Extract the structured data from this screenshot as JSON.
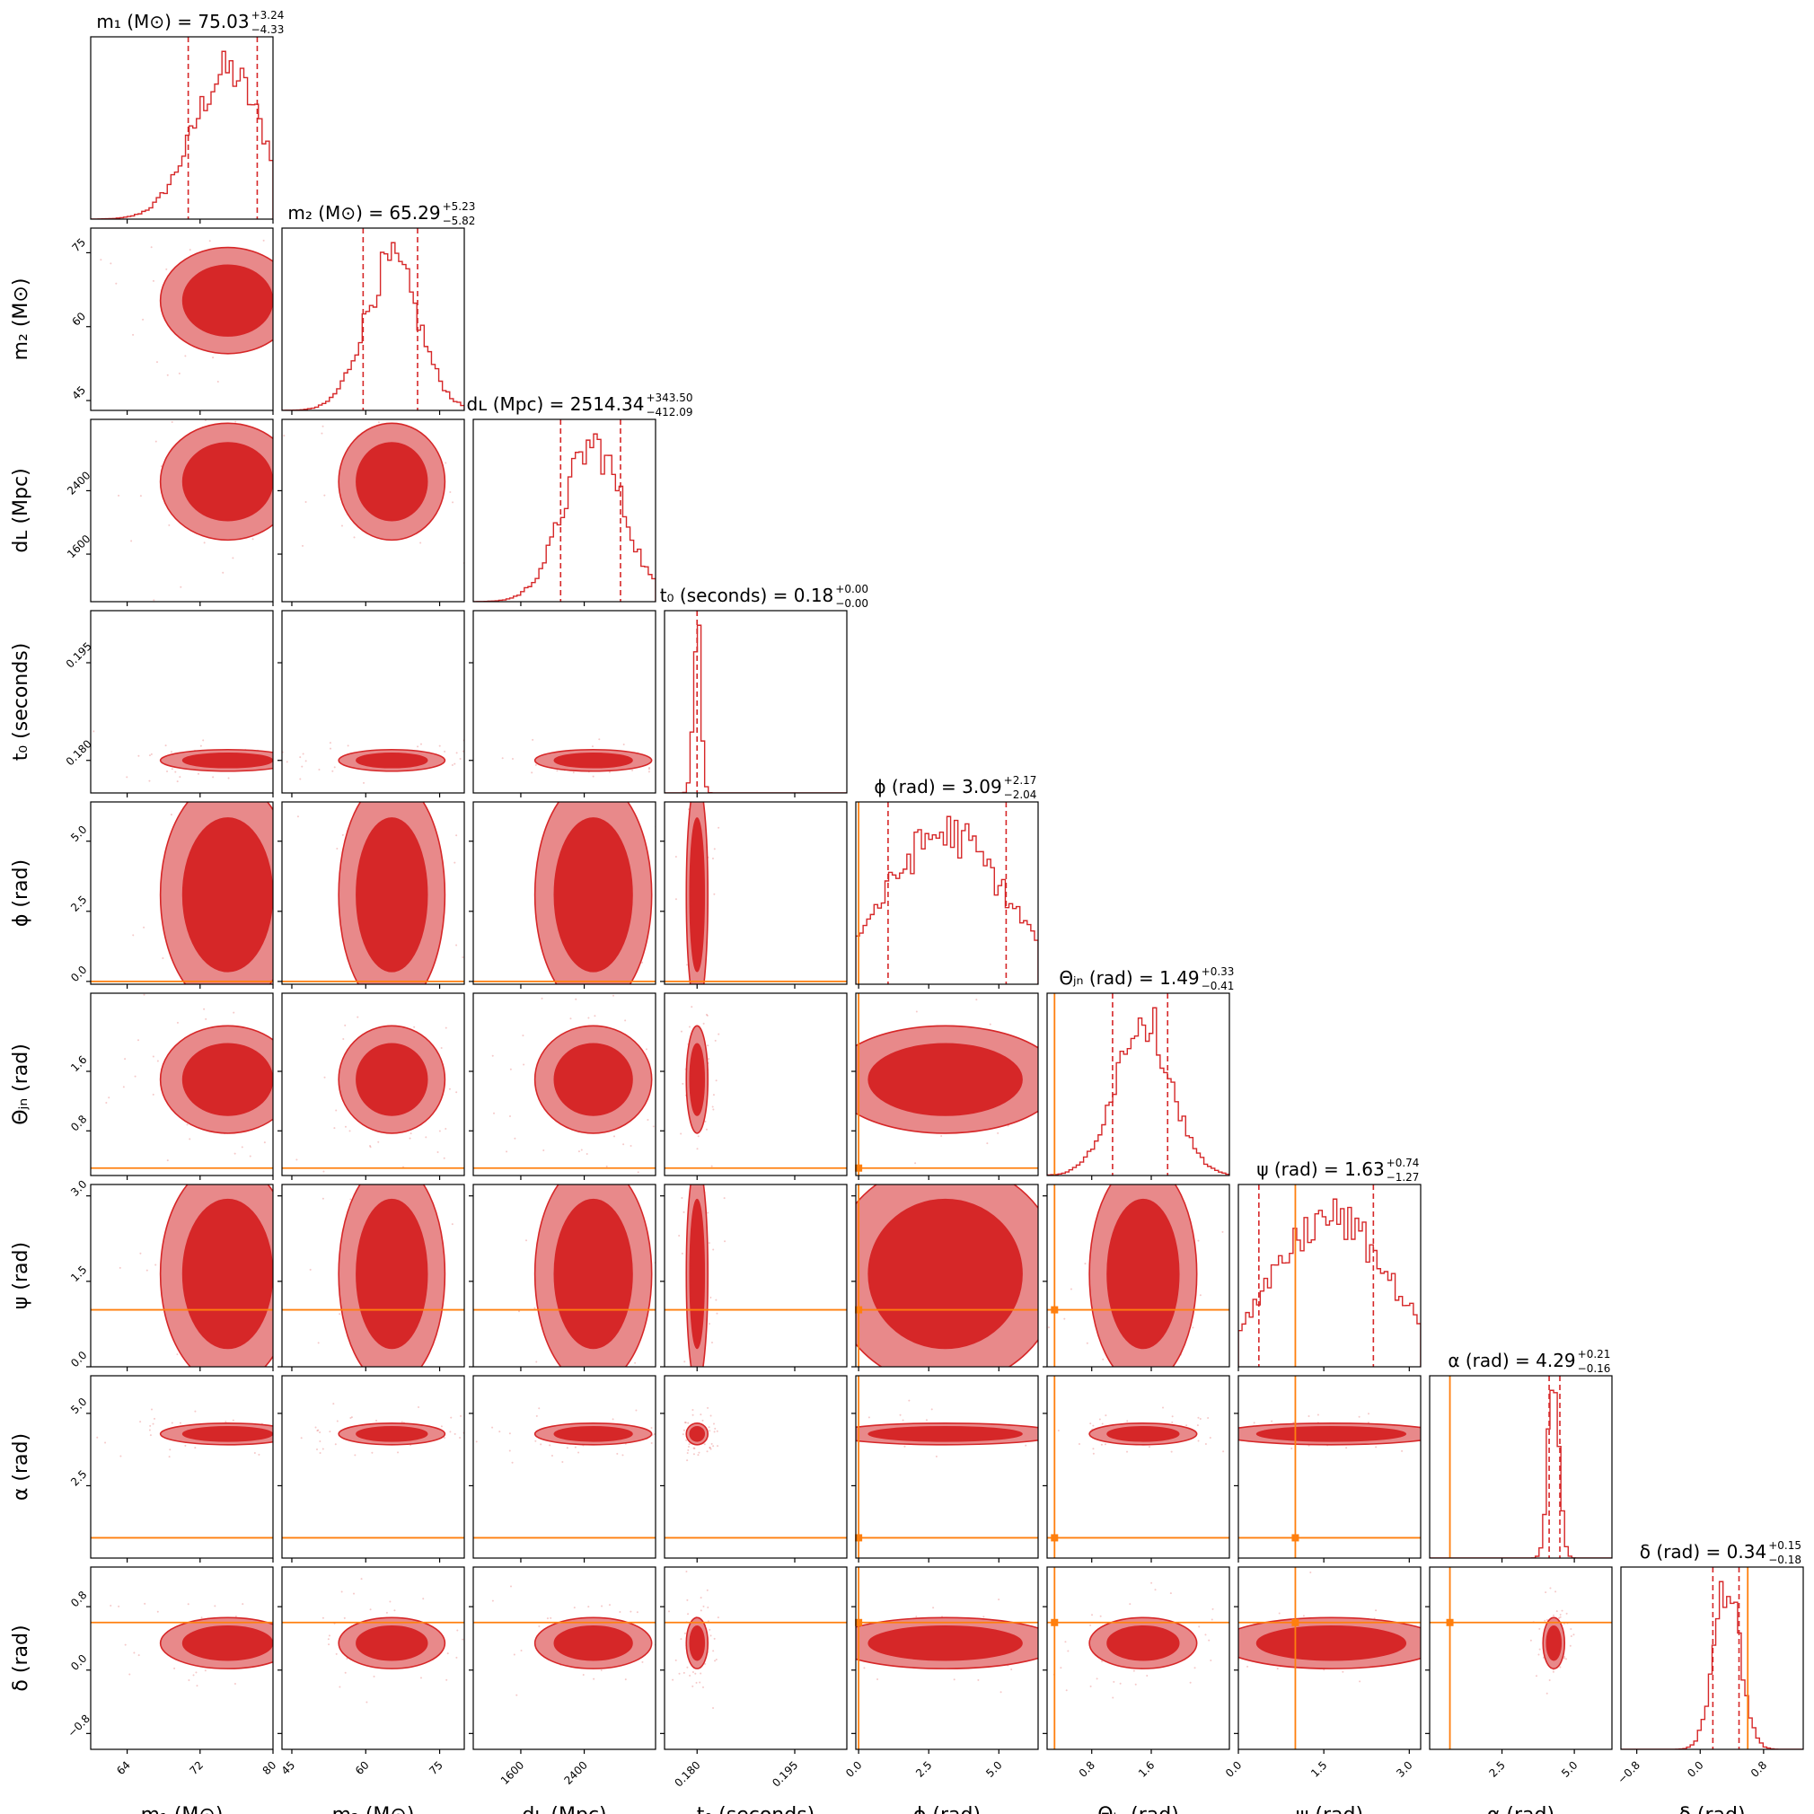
{
  "chart_data": {
    "type": "corner",
    "colors": {
      "posterior": "#d62728",
      "posterior_light": "#e8898a",
      "injection": "#ff7f0e"
    },
    "parameters": [
      {
        "key": "m1",
        "label": "m₁ (M⊙)",
        "range": [
          60,
          80
        ],
        "ticks": [
          64,
          72,
          80
        ],
        "tick_labels": [
          "64",
          "72",
          "80"
        ],
        "median": 75.03,
        "plus": 3.24,
        "minus": 4.33,
        "title": "m₁ (M⊙) = 75.03",
        "title_plus": "+3.24",
        "title_minus": "−4.33",
        "injection": null
      },
      {
        "key": "m2",
        "label": "m₂ (M⊙)",
        "range": [
          43,
          80
        ],
        "ticks": [
          45,
          60,
          75
        ],
        "tick_labels": [
          "45",
          "60",
          "75"
        ],
        "median": 65.29,
        "plus": 5.23,
        "minus": 5.82,
        "title": "m₂ (M⊙) = 65.29",
        "title_plus": "+5.23",
        "title_minus": "−5.82",
        "injection": null
      },
      {
        "key": "dL",
        "label": "dʟ (Mpc)",
        "range": [
          1000,
          3300
        ],
        "ticks": [
          1600,
          2400
        ],
        "tick_labels": [
          "1600",
          "2400"
        ],
        "median": 2514.34,
        "plus": 343.5,
        "minus": 412.09,
        "title": "dʟ (Mpc) = 2514.34",
        "title_plus": "+343.50",
        "title_minus": "−412.09",
        "injection": null
      },
      {
        "key": "t0",
        "label": "t₀ (seconds)",
        "range": [
          0.175,
          0.203
        ],
        "ticks": [
          0.18,
          0.195
        ],
        "tick_labels": [
          "0.180",
          "0.195"
        ],
        "median": 0.18,
        "plus": 0.0,
        "minus": 0.0,
        "title": "t₀ (seconds) = 0.18",
        "title_plus": "+0.00",
        "title_minus": "−0.00",
        "injection": null
      },
      {
        "key": "phi",
        "label": "ϕ (rad)",
        "range": [
          -0.1,
          6.4
        ],
        "ticks": [
          0.0,
          2.5,
          5.0
        ],
        "tick_labels": [
          "0.0",
          "2.5",
          "5.0"
        ],
        "median": 3.09,
        "plus": 2.17,
        "minus": 2.04,
        "title": "ϕ (rad) = 3.09",
        "title_plus": "+2.17",
        "title_minus": "−2.04",
        "injection": 0.0
      },
      {
        "key": "theta_jn",
        "label": "Θⱼₙ (rad)",
        "range": [
          0.2,
          2.65
        ],
        "ticks": [
          0.8,
          1.6
        ],
        "tick_labels": [
          "0.8",
          "1.6"
        ],
        "median": 1.49,
        "plus": 0.33,
        "minus": 0.41,
        "title": "Θⱼₙ (rad) = 1.49",
        "title_plus": "+0.33",
        "title_minus": "−0.41",
        "injection": 0.3
      },
      {
        "key": "psi",
        "label": "ψ (rad)",
        "range": [
          0.0,
          3.2
        ],
        "ticks": [
          0.0,
          1.5,
          3.0
        ],
        "tick_labels": [
          "0.0",
          "1.5",
          "3.0"
        ],
        "median": 1.63,
        "plus": 0.74,
        "minus": 1.27,
        "title": "ψ (rad) = 1.63",
        "title_plus": "+0.74",
        "title_minus": "−1.27",
        "injection": 1.0
      },
      {
        "key": "alpha",
        "label": "α (rad)",
        "range": [
          0.0,
          6.3
        ],
        "ticks": [
          2.5,
          5.0
        ],
        "tick_labels": [
          "2.5",
          "5.0"
        ],
        "median": 4.29,
        "plus": 0.21,
        "minus": 0.16,
        "title": "α (rad) = 4.29",
        "title_plus": "+0.21",
        "title_minus": "−0.16",
        "injection": 0.7
      },
      {
        "key": "delta",
        "label": "δ (rad)",
        "range": [
          -1.0,
          1.3
        ],
        "ticks": [
          -0.8,
          0.0,
          0.8
        ],
        "tick_labels": [
          "−0.8",
          "0.0",
          "0.8"
        ],
        "median": 0.34,
        "plus": 0.15,
        "minus": 0.18,
        "title": "δ (rad) = 0.34",
        "title_plus": "+0.15",
        "title_minus": "−0.18",
        "injection": 0.6
      }
    ]
  }
}
